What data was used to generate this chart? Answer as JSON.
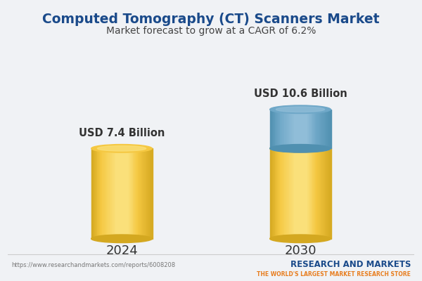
{
  "title": "Computed Tomography (CT) Scanners Market",
  "subtitle": "Market forecast to grow at a CAGR of 6.2%",
  "categories": [
    "2024",
    "2030"
  ],
  "values": [
    7.4,
    10.6
  ],
  "base_value": 7.4,
  "growth_value": 3.2,
  "labels": [
    "USD 7.4 Billion",
    "USD 10.6 Billion"
  ],
  "cylinder_color_main": "#F5C842",
  "cylinder_color_light": "#FAE07A",
  "cylinder_color_dark": "#D4A820",
  "top_color_main": "#6FA8C8",
  "top_color_light": "#90BDD8",
  "top_color_dark": "#5090B0",
  "background_color": "#F0F2F5",
  "title_color": "#1A4A8A",
  "subtitle_color": "#444444",
  "label_color": "#333333",
  "url_text": "https://www.researchandmarkets.com/reports/6008208",
  "brand_line1": "RESEARCH AND MARKETS",
  "brand_line2": "THE WORLD'S LARGEST MARKET RESEARCH STORE",
  "brand_color": "#1A4A8A",
  "brand_color2": "#E87D1E"
}
